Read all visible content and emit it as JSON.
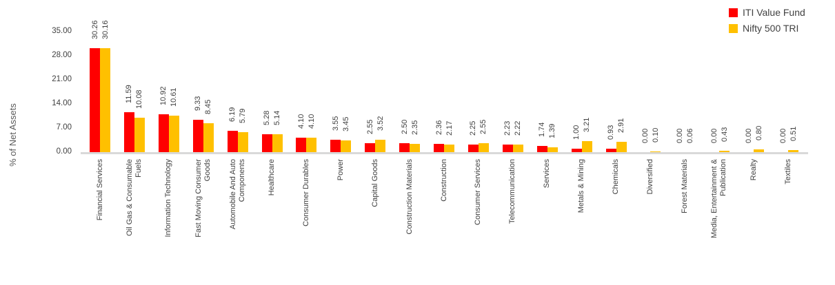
{
  "chart_data": {
    "type": "bar",
    "title": "",
    "xlabel": "",
    "ylabel": "% of Net Assets",
    "ylim": [
      0,
      35
    ],
    "yticks": [
      0,
      7,
      14,
      21,
      28,
      35
    ],
    "tick_format": "2-decimals",
    "value_label_format": "2-decimals",
    "grid": false,
    "legend_position": "top-right",
    "categories": [
      "Financial Services",
      "Oil Gas & Consumable\nFuels",
      "Information Technology",
      "Fast Moving Consumer\nGoods",
      "Automobile And Auto\nComponents",
      "Healthcare",
      "Consumer Durables",
      "Power",
      "Capital Goods",
      "Construction Materials",
      "Construction",
      "Consumer Services",
      "Telecommunication",
      "Services",
      "Metals & Mining",
      "Chemicals",
      "Diversified",
      "Forest Materials",
      "Media, Entertainment &\nPublication",
      "Realty",
      "Textiles"
    ],
    "series": [
      {
        "name": "ITI Value Fund",
        "color": "#ff0000",
        "values": [
          30.26,
          11.59,
          10.92,
          9.33,
          6.19,
          5.28,
          4.1,
          3.55,
          2.55,
          2.5,
          2.36,
          2.25,
          2.23,
          1.74,
          1.0,
          0.93,
          0.0,
          0.0,
          0.0,
          0.0,
          0.0
        ]
      },
      {
        "name": "Nifty 500 TRI",
        "color": "#ffc000",
        "values": [
          30.16,
          10.08,
          10.61,
          8.45,
          5.79,
          5.14,
          4.1,
          3.45,
          3.52,
          2.35,
          2.17,
          2.55,
          2.22,
          1.39,
          3.21,
          2.91,
          0.1,
          0.06,
          0.43,
          0.8,
          0.51
        ]
      }
    ]
  },
  "colors": {
    "axis_line": "#d9d9d9",
    "label_text": "#3f3f3f",
    "axis_title_text": "#595959",
    "legend_text": "#404040",
    "background": "#ffffff"
  }
}
